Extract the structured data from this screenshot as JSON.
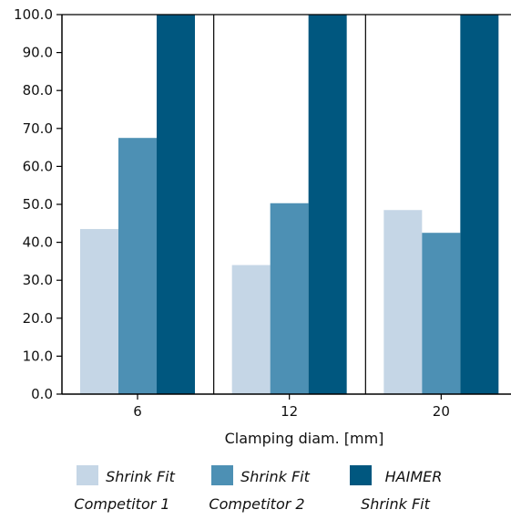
{
  "chart_data": {
    "type": "bar",
    "categories": [
      "6",
      "12",
      "20"
    ],
    "series": [
      {
        "name": "Shrink Fit\nCompetitor 1",
        "values": [
          43.5,
          34.0,
          48.5
        ],
        "color": "#c5d6e6"
      },
      {
        "name": "Shrink Fit\nCompetitor 2",
        "values": [
          67.5,
          50.3,
          42.5
        ],
        "color": "#4d90b4"
      },
      {
        "name": "HAIMER\nShrink Fit",
        "values": [
          100.0,
          100.0,
          100.0
        ],
        "color": "#00577f"
      }
    ],
    "title": "",
    "xlabel": "Clamping diam. [mm]",
    "ylabel": "",
    "ylim": [
      0,
      100
    ],
    "yticks": [
      "0.0",
      "10.0",
      "20.0",
      "30.0",
      "40.0",
      "50.0",
      "60.0",
      "70.0",
      "80.0",
      "90.0",
      "100.0"
    ],
    "grid": "vertical category separators",
    "legend_position": "bottom"
  }
}
